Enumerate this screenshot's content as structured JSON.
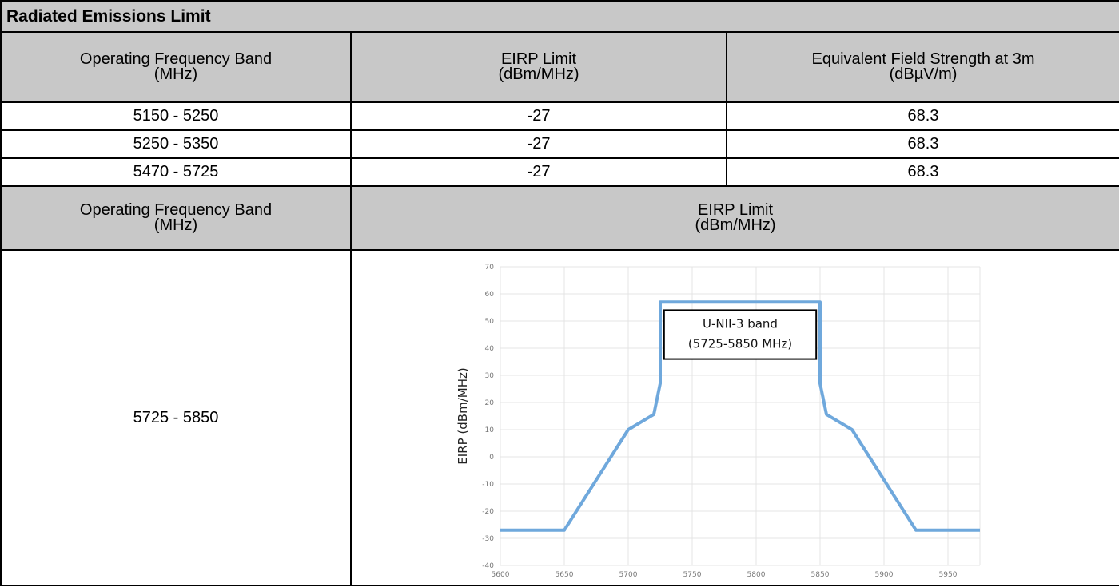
{
  "title": "Radiated Emissions Limit",
  "table1": {
    "headers": [
      {
        "line1": "Operating Frequency Band",
        "line2": "(MHz)"
      },
      {
        "line1": "EIRP Limit",
        "line2": "(dBm/MHz)"
      },
      {
        "line1": "Equivalent Field Strength at 3m",
        "line2": "(dBµV/m)"
      }
    ],
    "rows": [
      [
        "5150 - 5250",
        "-27",
        "68.3"
      ],
      [
        "5250 - 5350",
        "-27",
        "68.3"
      ],
      [
        "5470 - 5725",
        "-27",
        "68.3"
      ]
    ]
  },
  "table2": {
    "headers": [
      {
        "line1": "Operating Frequency Band",
        "line2": "(MHz)"
      },
      {
        "line1": "EIRP Limit",
        "line2": "(dBm/MHz)"
      }
    ],
    "band": "5725 - 5850"
  },
  "chart_data": {
    "type": "line",
    "title": "",
    "xlabel": "",
    "ylabel": "EIRP (dBm/MHz)",
    "xlim": [
      5600,
      5975
    ],
    "ylim": [
      -40,
      70
    ],
    "x_ticks": [
      5600,
      5650,
      5700,
      5750,
      5800,
      5850,
      5900,
      5950
    ],
    "y_ticks": [
      70,
      60,
      50,
      40,
      30,
      20,
      10,
      0,
      -10,
      -20,
      -30,
      -40
    ],
    "grid": true,
    "line_color": "#6fa8dc",
    "annotation": {
      "line1": "U-NII-3 band",
      "line2": "(5725-5850 MHz)"
    },
    "series": [
      {
        "x": [
          5600,
          5650,
          5700,
          5720,
          5725,
          5725,
          5850,
          5850,
          5855,
          5875,
          5925,
          5975
        ],
        "y": [
          -27,
          -27,
          10,
          15.6,
          27,
          57,
          57,
          27,
          15.6,
          10,
          -27,
          -27
        ]
      }
    ]
  }
}
